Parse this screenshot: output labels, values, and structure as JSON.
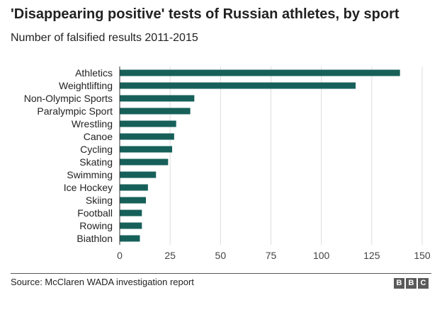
{
  "title": "'Disappearing positive' tests of Russian athletes, by sport",
  "subtitle": "Number of falsified results 2011-2015",
  "source": "Source: McClaren WADA investigation report",
  "logo_letters": [
    "B",
    "B",
    "C"
  ],
  "colors": {
    "bar": "#17605a",
    "grid": "#dddddd",
    "axis": "#333333",
    "text": "#222222",
    "logo": "#5a5a5a"
  },
  "chart_data": {
    "type": "bar",
    "orientation": "horizontal",
    "categories": [
      "Athletics",
      "Weightlifting",
      "Non-Olympic Sports",
      "Paralympic Sport",
      "Wrestling",
      "Canoe",
      "Cycling",
      "Skating",
      "Swimming",
      "Ice Hockey",
      "Skiing",
      "Football",
      "Rowing",
      "Biathlon"
    ],
    "values": [
      139,
      117,
      37,
      35,
      28,
      27,
      26,
      24,
      18,
      14,
      13,
      11,
      11,
      10
    ],
    "title": "'Disappearing positive' tests of Russian athletes, by sport",
    "subtitle": "Number of falsified results 2011-2015",
    "xlabel": "",
    "ylabel": "",
    "xlim": [
      0,
      150
    ],
    "xticks": [
      0,
      25,
      50,
      75,
      100,
      125,
      150
    ],
    "grid": true
  }
}
